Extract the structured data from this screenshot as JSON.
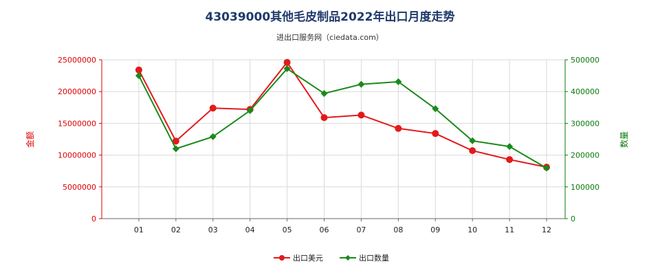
{
  "title": "43039000其他毛皮制品2022年出口月度走势",
  "subtitle": "进出口服务网（ciedata.com）",
  "chart_data": {
    "type": "line",
    "x": [
      "01",
      "02",
      "03",
      "04",
      "05",
      "06",
      "07",
      "08",
      "09",
      "10",
      "11",
      "12"
    ],
    "y_left": {
      "label": "金额",
      "ticks": [
        "0",
        "5000000",
        "10000000",
        "15000000",
        "20000000",
        "25000000"
      ],
      "ylim": [
        0,
        25000000
      ]
    },
    "y_right": {
      "label": "数量",
      "ticks": [
        "0",
        "100000",
        "200000",
        "300000",
        "400000",
        "500000"
      ],
      "ylim": [
        0,
        500000
      ]
    },
    "series": [
      {
        "name": "出口美元",
        "axis": "left",
        "color": "#e31a1c",
        "values": [
          23400000,
          12200000,
          17400000,
          17200000,
          24600000,
          15900000,
          16300000,
          14200000,
          13400000,
          10700000,
          9300000,
          8100000
        ]
      },
      {
        "name": "出口数量",
        "axis": "right",
        "color": "#1a8a1a",
        "values": [
          450000,
          220000,
          258000,
          340000,
          472000,
          394000,
          423000,
          431000,
          346000,
          245000,
          227000,
          159000
        ]
      }
    ],
    "grid": true,
    "legend": "bottom"
  }
}
